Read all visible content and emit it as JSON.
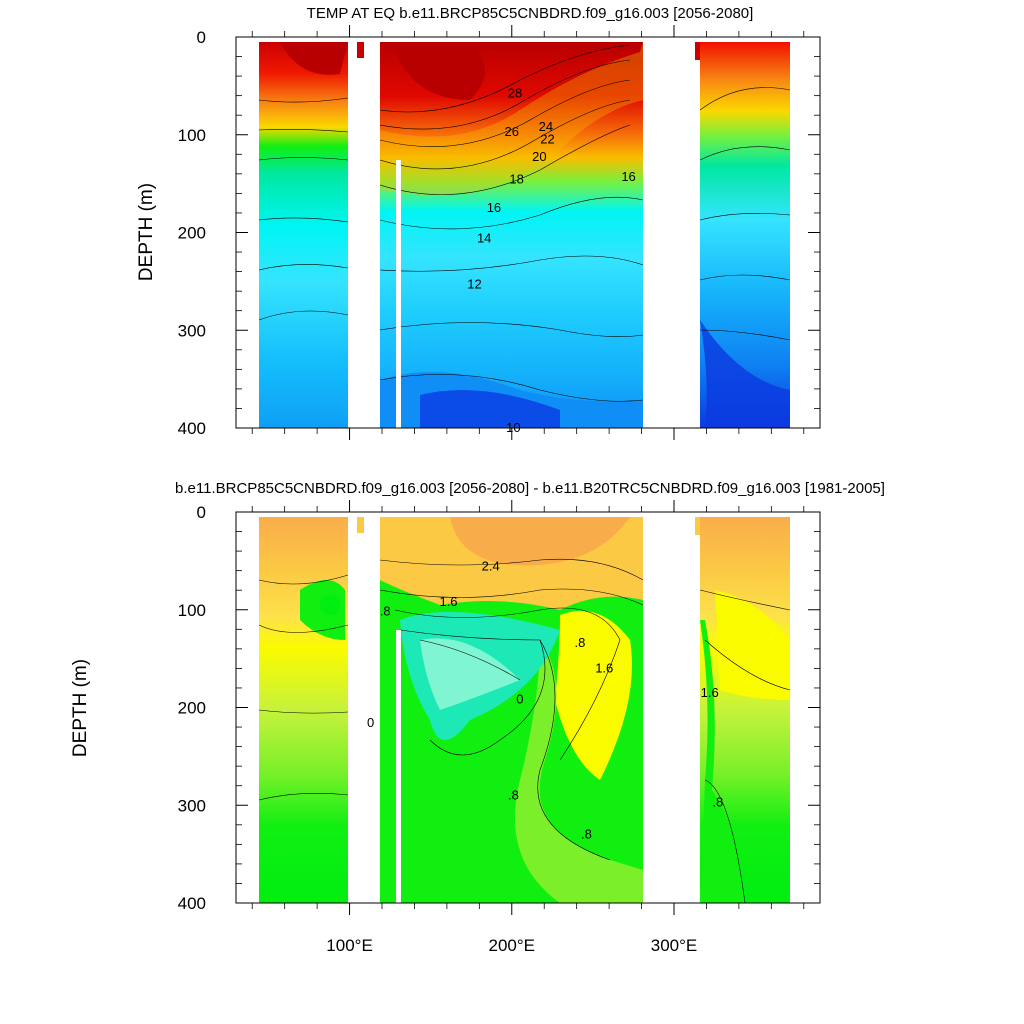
{
  "chart_data": [
    {
      "type": "contour",
      "title": "TEMP AT EQ b.e11.BRCP85C5CNBDRD.f09_g16.003 [2056-2080]",
      "ylabel": "DEPTH (m)",
      "xlim": [
        30,
        390
      ],
      "ylim": [
        400,
        0
      ],
      "y_ticks": [
        "0",
        "100",
        "200",
        "300",
        "400"
      ],
      "y_tick_values": [
        0,
        100,
        200,
        300,
        400
      ],
      "x_tick_values": [
        100,
        200,
        300
      ],
      "contour_labels": [
        {
          "text": "28",
          "x": 202,
          "y": 58
        },
        {
          "text": "26",
          "x": 200,
          "y": 97
        },
        {
          "text": "24",
          "x": 221,
          "y": 92
        },
        {
          "text": "22",
          "x": 222,
          "y": 105
        },
        {
          "text": "20",
          "x": 217,
          "y": 123
        },
        {
          "text": "18",
          "x": 203,
          "y": 146
        },
        {
          "text": "16",
          "x": 189,
          "y": 175
        },
        {
          "text": "16",
          "x": 272,
          "y": 143
        },
        {
          "text": "14",
          "x": 183,
          "y": 206
        },
        {
          "text": "12",
          "x": 177,
          "y": 253
        },
        {
          "text": "10",
          "x": 201,
          "y": 400
        }
      ],
      "color_scale": [
        "#0b2cde",
        "#0f5bf4",
        "#0f8ff5",
        "#14b1fb",
        "#1fcdfd",
        "#35e4fe",
        "#00f5f5",
        "#00e8c0",
        "#00dd55",
        "#11ef11",
        "#7bf03b",
        "#c5f010",
        "#f5f000",
        "#fbd800",
        "#f9bd00",
        "#f9a12a",
        "#f88a13",
        "#f66f0a",
        "#f53b00",
        "#fa0000",
        "#d60000",
        "#bb0000"
      ]
    },
    {
      "type": "contour",
      "title": "b.e11.BRCP85C5CNBDRD.f09_g16.003 [2056-2080] - b.e11.B20TRC5CNBDRD.f09_g16.003 [1981-2005]",
      "ylabel": "DEPTH (m)",
      "xlim": [
        30,
        390
      ],
      "ylim": [
        400,
        0
      ],
      "y_ticks": [
        "0",
        "100",
        "200",
        "300",
        "400"
      ],
      "y_tick_values": [
        0,
        100,
        200,
        300,
        400
      ],
      "x_ticks": [
        "100°E",
        "200°E",
        "300°E"
      ],
      "x_tick_values": [
        100,
        200,
        300
      ],
      "contour_labels": [
        {
          "text": "2.4",
          "x": 187,
          "y": 56
        },
        {
          "text": "1.6",
          "x": 161,
          "y": 92
        },
        {
          "text": ".8",
          "x": 122,
          "y": 102
        },
        {
          "text": ".8",
          "x": 242,
          "y": 134
        },
        {
          "text": "1.6",
          "x": 257,
          "y": 160
        },
        {
          "text": "0",
          "x": 205,
          "y": 192
        },
        {
          "text": "0",
          "x": 113,
          "y": 216
        },
        {
          "text": "1.6",
          "x": 322,
          "y": 185
        },
        {
          "text": ".8",
          "x": 201,
          "y": 290
        },
        {
          "text": ".8",
          "x": 327,
          "y": 297
        },
        {
          "text": ".8",
          "x": 246,
          "y": 330
        }
      ],
      "color_scale": [
        "#1de9b6",
        "#11ef66",
        "#00ee11",
        "#7bf02a",
        "#c6f23b",
        "#fbfb00",
        "#fde24a",
        "#fbc944",
        "#f9ad4a",
        "#f79a3a"
      ]
    }
  ]
}
